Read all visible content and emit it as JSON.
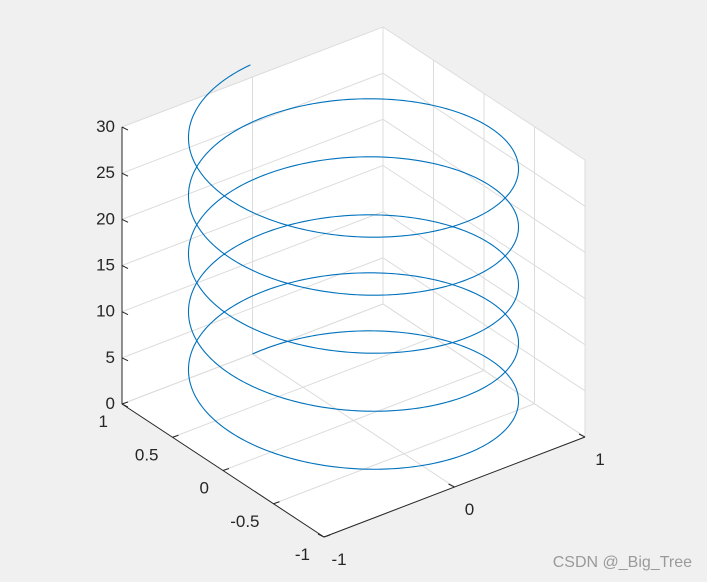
{
  "chart_data": {
    "type": "line",
    "title": "",
    "xlabel": "",
    "ylabel": "",
    "zlabel": "",
    "xlim": [
      -1,
      1
    ],
    "ylim": [
      -1,
      1
    ],
    "zlim": [
      0,
      30
    ],
    "x_ticks": [
      "-1",
      "0",
      "1"
    ],
    "y_ticks": [
      "-1",
      "-0.5",
      "0",
      "0.5",
      "1"
    ],
    "z_ticks": [
      "0",
      "5",
      "10",
      "15",
      "20",
      "25",
      "30"
    ],
    "grid": true,
    "series": [
      {
        "equation": "x = sin(t), y = cos(t), z = t",
        "t_range": [
          0,
          31.4
        ]
      }
    ],
    "colors": {
      "line": "#0072bd",
      "axis": "#262626",
      "grid": "#dcdcdc",
      "background": "#ffffff"
    }
  },
  "watermark": "CSDN @_Big_Tree"
}
